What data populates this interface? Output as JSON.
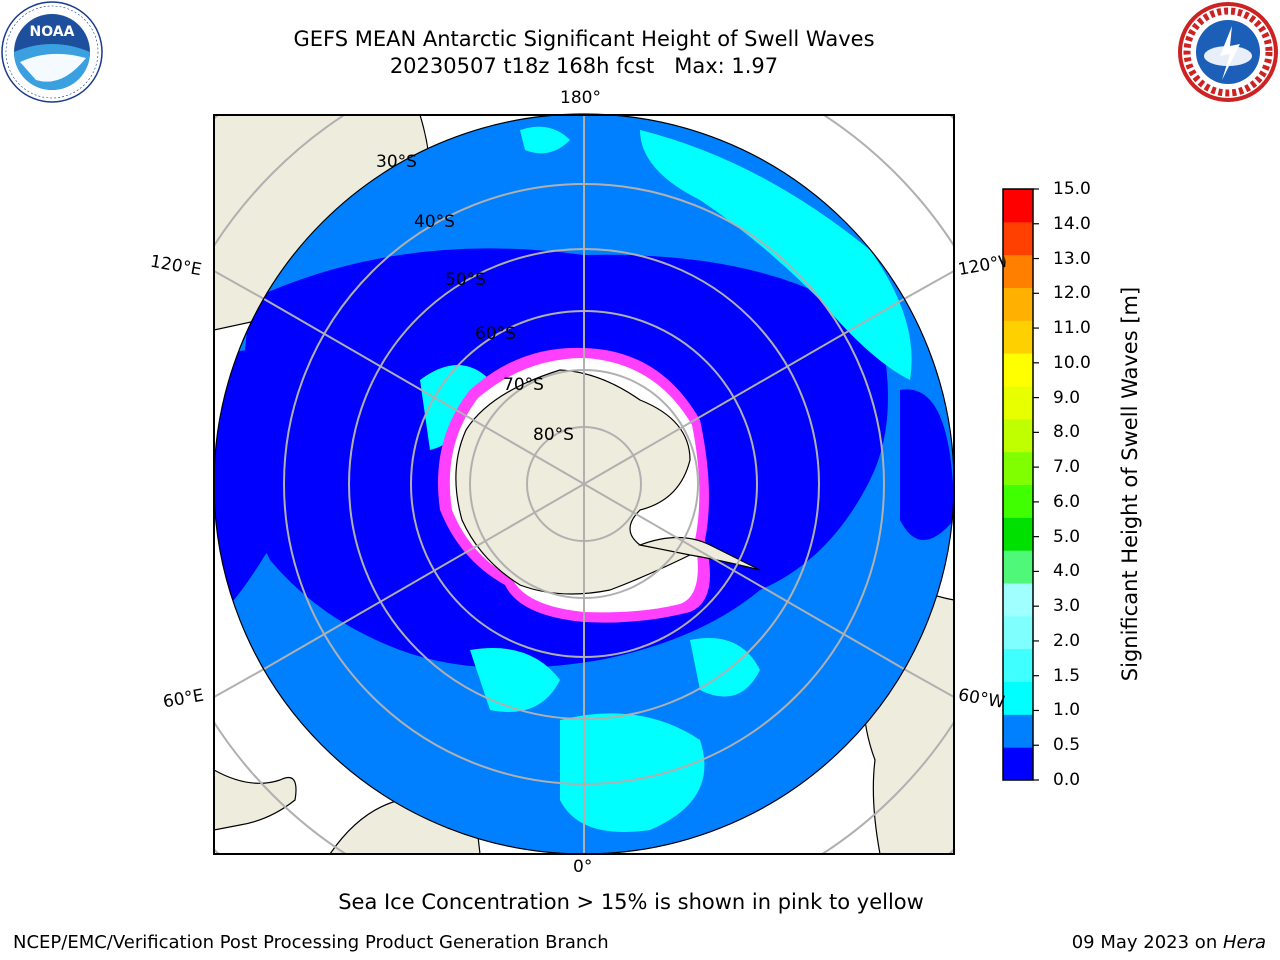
{
  "header": {
    "title_line1": "GEFS MEAN Antarctic Significant Height of Swell Waves",
    "title_line2": "20230507 t18z 168h fcst   Max: 1.97"
  },
  "logos": {
    "left": "noaa-logo",
    "right": "national-weather-service-logo"
  },
  "map": {
    "projection": "south-polar-stereographic",
    "meridian_labels": {
      "top": "180°",
      "bottom": "0°",
      "upper_left": "120°E",
      "lower_left": "60°E",
      "upper_right": "120°W",
      "lower_right": "60°W"
    },
    "parallel_labels": [
      "30°S",
      "40°S",
      "50°S",
      "60°S",
      "70°S",
      "80°S"
    ],
    "colors": {
      "land": "#eeecdc",
      "sea_ice_edge_pink": "#ff40ff",
      "sea_ice_interior": "#ffffff",
      "gridline": "#b0b0b0"
    }
  },
  "colorbar": {
    "title": "Significant Height of Swell Waves [m]",
    "ticks": [
      "15.0",
      "14.0",
      "13.0",
      "12.0",
      "11.0",
      "10.0",
      "9.0",
      "8.0",
      "7.0",
      "6.0",
      "5.0",
      "4.0",
      "3.0",
      "2.0",
      "1.5",
      "1.0",
      "0.5",
      "0.0"
    ],
    "colors": [
      "#0000ff",
      "#0080ff",
      "#00ffff",
      "#40ffff",
      "#80ffff",
      "#a0ffff",
      "#50f87a",
      "#00e000",
      "#40ff00",
      "#80ff00",
      "#c0ff00",
      "#e8ff00",
      "#ffff00",
      "#ffd000",
      "#ffb000",
      "#ff8000",
      "#ff4000",
      "#ff0000"
    ]
  },
  "caption": "Sea Ice Concentration > 15% is shown in pink to yellow",
  "footer": {
    "left": "NCEP/EMC/Verification Post Processing Product Generation Branch",
    "right_date": "09 May 2023 on ",
    "right_host": "Hera"
  }
}
